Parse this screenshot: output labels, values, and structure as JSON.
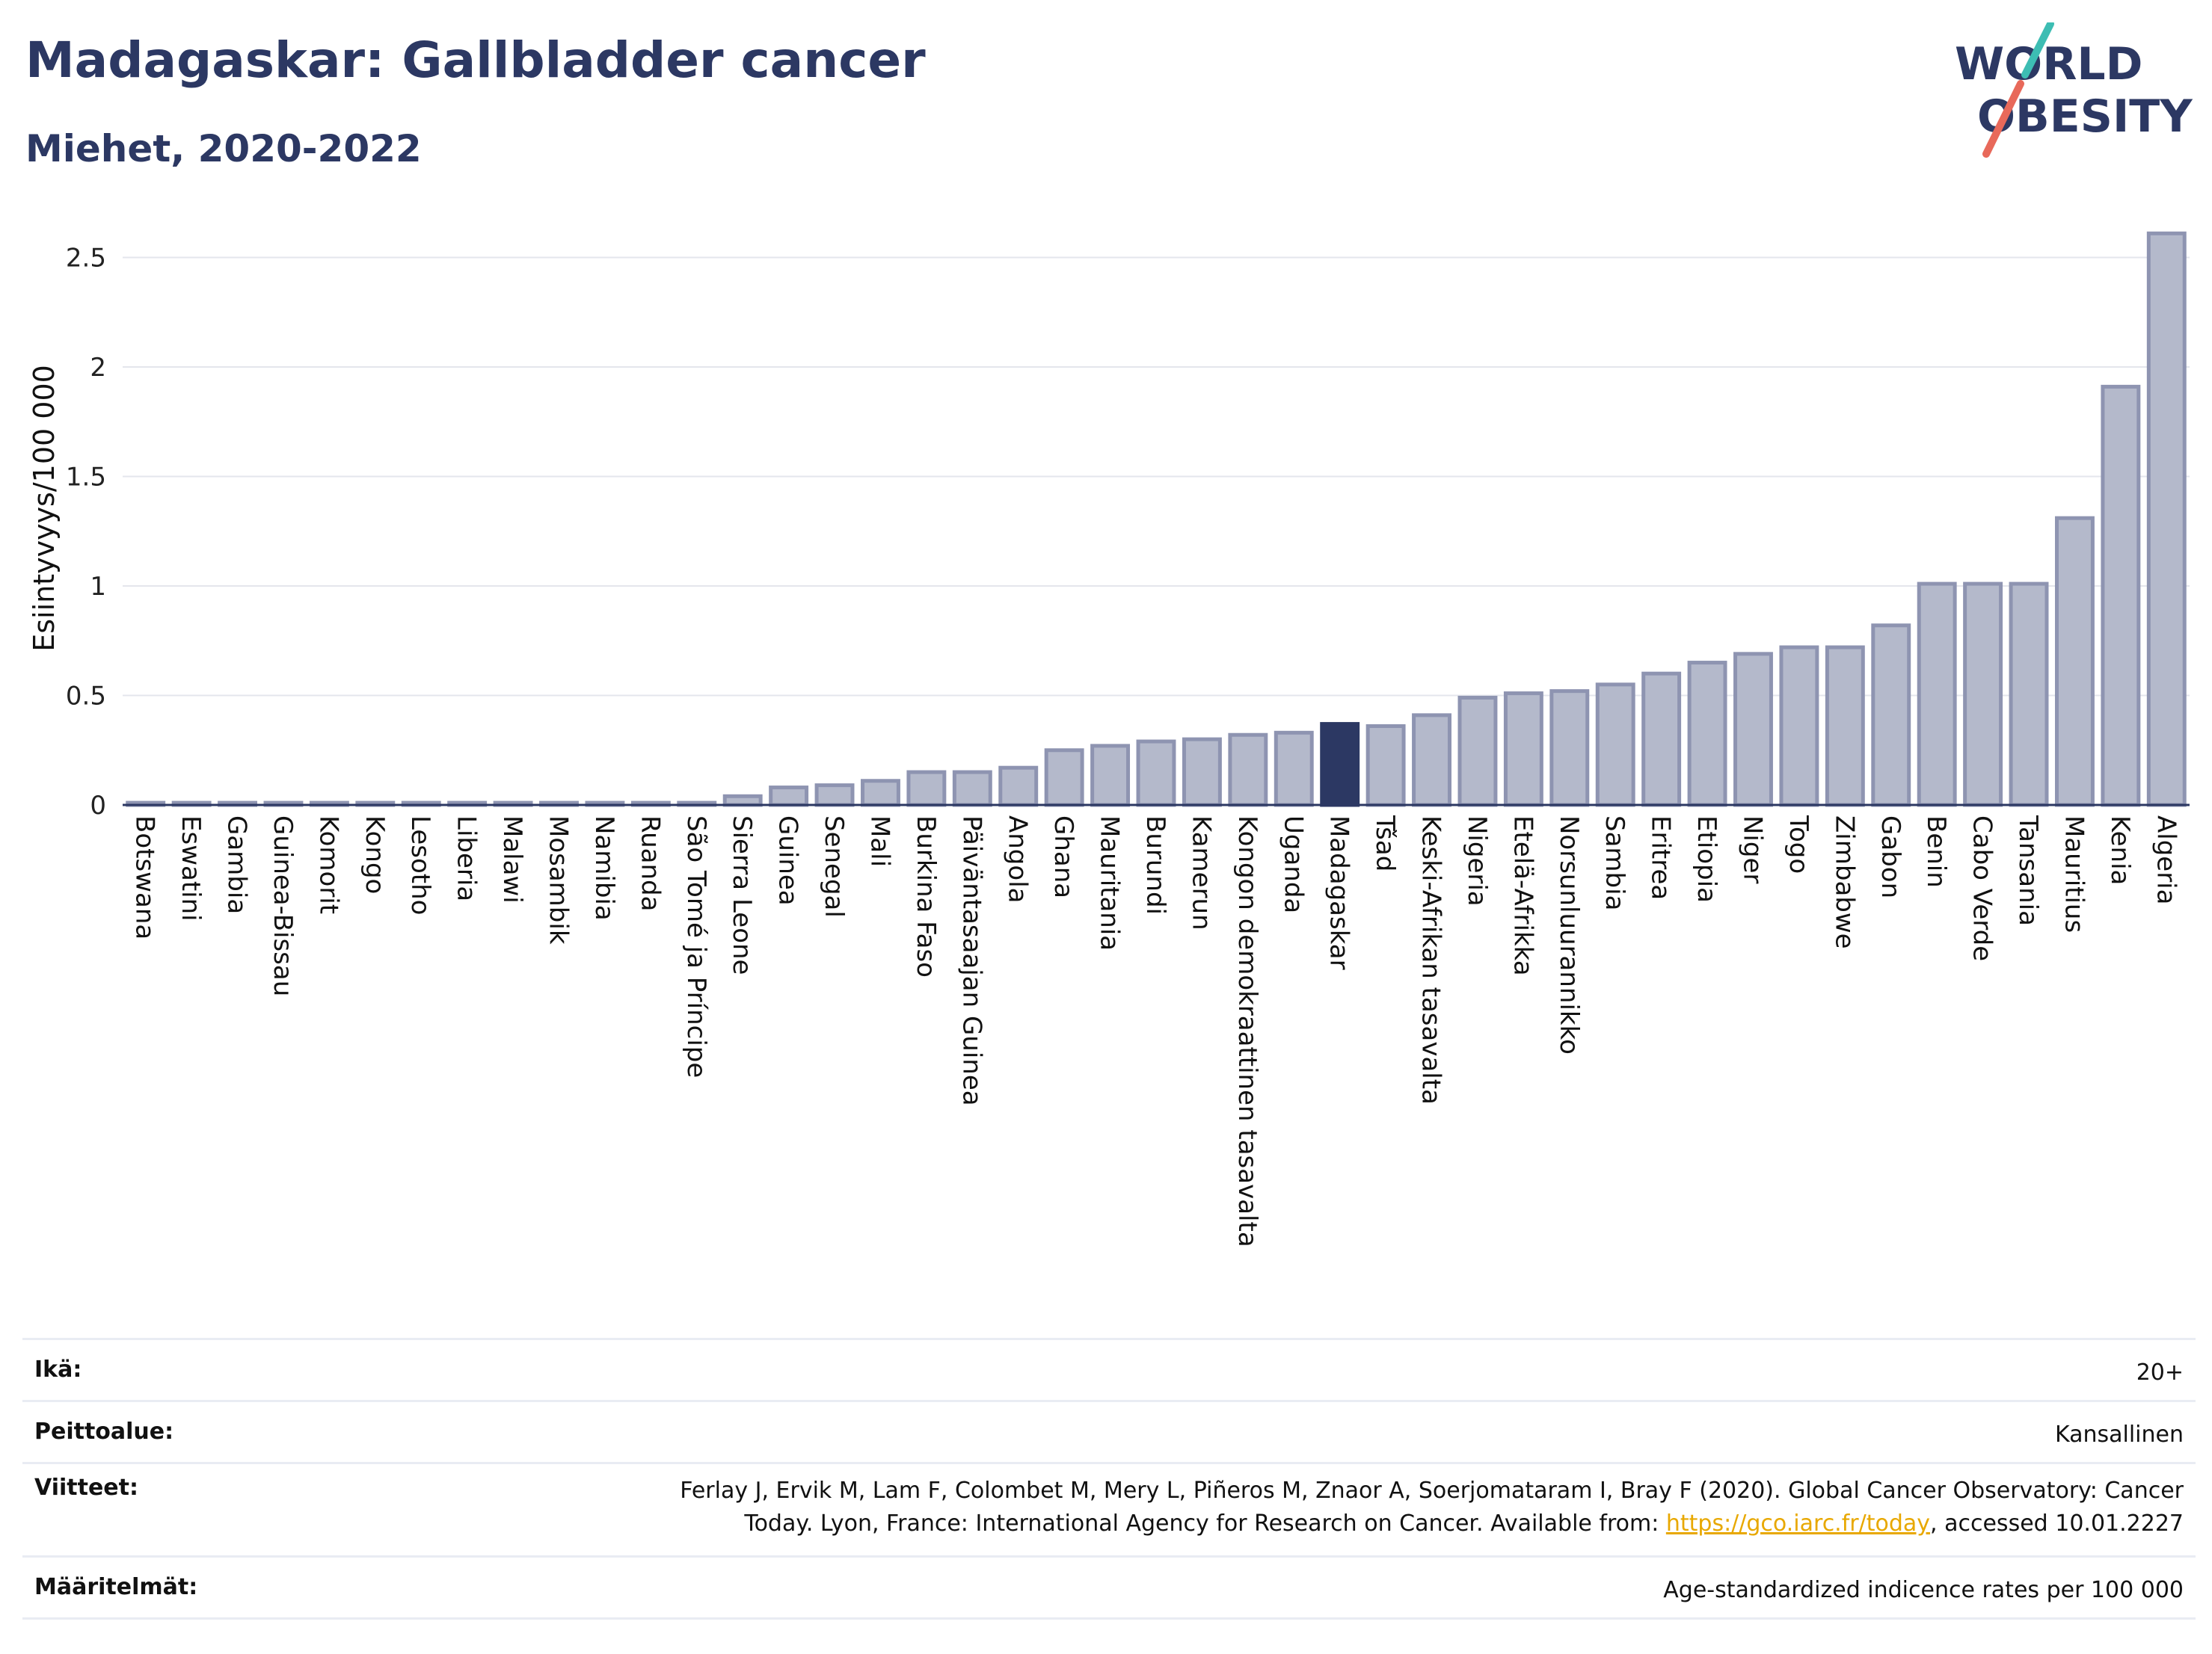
{
  "header": {
    "title": "Madagaskar: Gallbladder cancer",
    "subtitle": "Miehet, 2020-2022"
  },
  "logo": {
    "line1": "WORLD",
    "line2": "OBESITY",
    "colors": {
      "text": "#2c3863",
      "slash_top": "#3dbdb3",
      "slash_bottom": "#e8695a"
    }
  },
  "chart_data": {
    "type": "bar",
    "ylabel": "Esiintyvyys/100 000",
    "ylim": [
      0,
      2.6
    ],
    "yticks": [
      0,
      0.5,
      1,
      1.5,
      2,
      2.5
    ],
    "ytick_labels": [
      "0",
      "0.5",
      "1",
      "1.5",
      "2",
      "2.5"
    ],
    "grid": true,
    "highlight": "Madagaskar",
    "colors": {
      "bar": "#b4b9cb",
      "bar_edge": "#8e94b1",
      "highlight": "#2c3863"
    },
    "categories": [
      "Botswana",
      "Eswatini",
      "Gambia",
      "Guinea-Bissau",
      "Komorit",
      "Kongo",
      "Lesotho",
      "Liberia",
      "Malawi",
      "Mosambik",
      "Namibia",
      "Ruanda",
      "São Tomé ja Príncipe",
      "Sierra Leone",
      "Guinea",
      "Senegal",
      "Mali",
      "Burkina Faso",
      "Päiväntasaajan Guinea",
      "Angola",
      "Ghana",
      "Mauritania",
      "Burundi",
      "Kamerun",
      "Kongon demokraattinen tasavalta",
      "Uganda",
      "Madagaskar",
      "Tšad",
      "Keski-Afrikan tasavalta",
      "Nigeria",
      "Etelä-Afrikka",
      "Norsunluurannikko",
      "Sambia",
      "Eritrea",
      "Etiopia",
      "Niger",
      "Togo",
      "Zimbabwe",
      "Gabon",
      "Benin",
      "Cabo Verde",
      "Tansania",
      "Mauritius",
      "Kenia",
      "Algeria"
    ],
    "values": [
      0.01,
      0.01,
      0.01,
      0.01,
      0.01,
      0.01,
      0.01,
      0.01,
      0.01,
      0.01,
      0.01,
      0.01,
      0.01,
      0.04,
      0.08,
      0.09,
      0.11,
      0.15,
      0.15,
      0.17,
      0.25,
      0.27,
      0.29,
      0.3,
      0.32,
      0.33,
      0.37,
      0.36,
      0.41,
      0.49,
      0.51,
      0.52,
      0.55,
      0.6,
      0.65,
      0.69,
      0.72,
      0.72,
      0.82,
      1.01,
      1.01,
      1.01,
      1.31,
      1.91,
      2.61
    ]
  },
  "info": {
    "age_label": "Ikä:",
    "age_value": "20+",
    "coverage_label": "Peittoalue:",
    "coverage_value": "Kansallinen",
    "refs_label": "Viitteet:",
    "refs_line1": "Ferlay J, Ervik M, Lam F, Colombet M, Mery L, Piñeros M, Znaor A, Soerjomataram I, Bray F (2020). Global Cancer Observatory: Cancer",
    "refs_line2_pre": "Today. Lyon, France: International Agency for Research on Cancer. Available from: ",
    "refs_link": "https://gco.iarc.fr/today",
    "refs_line2_post": ", accessed 10.01.2227",
    "defs_label": "Määritelmät:",
    "defs_value": "Age-standardized indicence rates per 100 000"
  }
}
